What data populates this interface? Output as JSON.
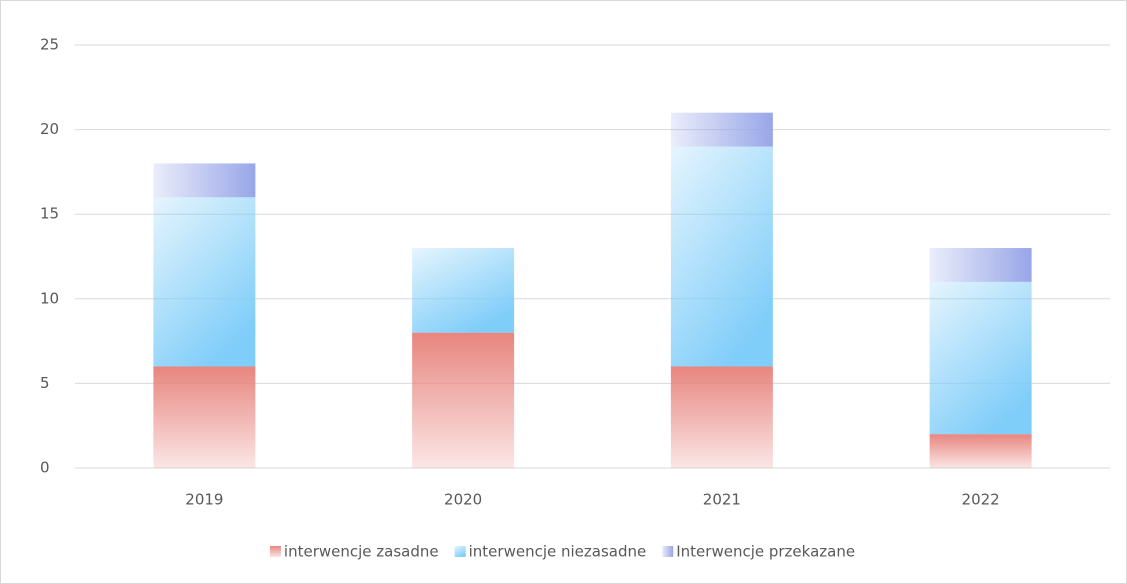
{
  "chart_data": {
    "type": "stacked_bar",
    "categories": [
      "2019",
      "2020",
      "2021",
      "2022"
    ],
    "series": [
      {
        "name": "interwencje zasadne",
        "color": "#e8857f",
        "values": [
          6,
          8,
          6,
          2
        ]
      },
      {
        "name": "interwencje niezasadne",
        "color": "#7fcdf9",
        "values": [
          10,
          5,
          13,
          9
        ]
      },
      {
        "name": "Interwencje przekazane",
        "color": "#98a6e8",
        "values": [
          2,
          0,
          2,
          2
        ]
      }
    ],
    "ylim": [
      0,
      25
    ],
    "yticks": [
      0,
      5,
      10,
      15,
      20,
      25
    ],
    "grid": true,
    "legend": "bottom"
  }
}
